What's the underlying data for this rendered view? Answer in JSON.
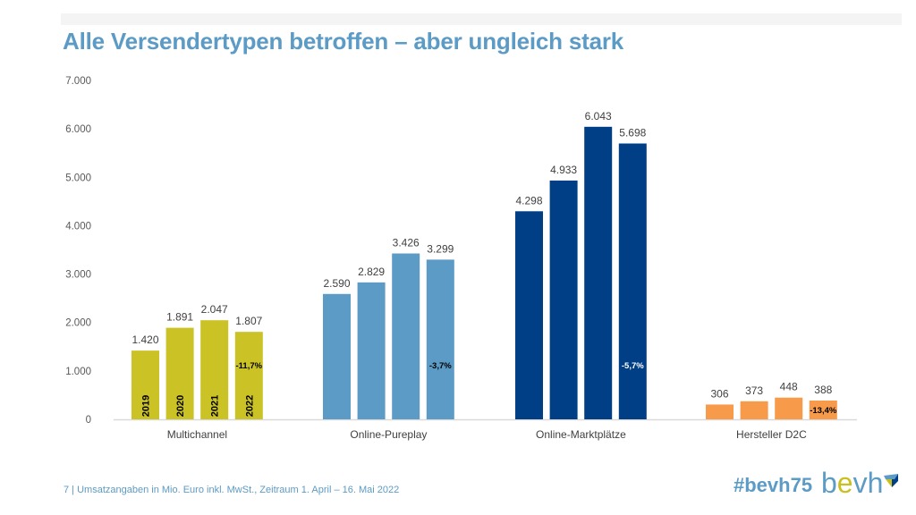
{
  "slide": {
    "title": "Alle Versendertypen betroffen – aber ungleich stark",
    "page_number": "7",
    "footer_note": "Umsatzangaben in Mio. Euro inkl. MwSt., Zeitraum 1. April – 16. Mai 2022",
    "hashtag": "#bevh75",
    "logo": {
      "text_b": "b",
      "text_e": "e",
      "text_vh": "vh",
      "icon": "bevh-cube-icon"
    }
  },
  "chart_data": {
    "type": "bar",
    "title": "",
    "xlabel": "",
    "ylabel": "",
    "ylim": [
      0,
      7000
    ],
    "yticks": [
      0,
      1000,
      2000,
      3000,
      4000,
      5000,
      6000,
      7000
    ],
    "ytick_labels": [
      "0",
      "1.000",
      "2.000",
      "3.000",
      "4.000",
      "5.000",
      "6.000",
      "7.000"
    ],
    "grid": false,
    "categories": [
      "Multichannel",
      "Online-Pureplay",
      "Online-Marktplätze",
      "Hersteller D2C"
    ],
    "series_names": [
      "2019",
      "2020",
      "2021",
      "2022"
    ],
    "groups": [
      {
        "name": "Multichannel",
        "color": "#cbc226",
        "values": [
          1420,
          1891,
          2047,
          1807
        ],
        "labels": [
          "1.420",
          "1.891",
          "2.047",
          "1.807"
        ],
        "change": "-11,7%",
        "change_color": "#000000"
      },
      {
        "name": "Online-Pureplay",
        "color": "#5b9bc5",
        "values": [
          2590,
          2829,
          3426,
          3299
        ],
        "labels": [
          "2.590",
          "2.829",
          "3.426",
          "3.299"
        ],
        "change": "-3,7%",
        "change_color": "#000000"
      },
      {
        "name": "Online-Marktplätze",
        "color": "#003f86",
        "values": [
          4298,
          4933,
          6043,
          5698
        ],
        "labels": [
          "4.298",
          "4.933",
          "6.043",
          "5.698"
        ],
        "change": "-5,7%",
        "change_color": "#ffffff"
      },
      {
        "name": "Hersteller D2C",
        "color": "#f79a4a",
        "values": [
          306,
          373,
          448,
          388
        ],
        "labels": [
          "306",
          "373",
          "448",
          "388"
        ],
        "change": "-13,4%",
        "change_color": "#000000"
      }
    ],
    "year_labels_shown_in": "Multichannel",
    "annotations": [
      "-11,7%",
      "-3,7%",
      "-5,7%",
      "-13,4%"
    ]
  }
}
